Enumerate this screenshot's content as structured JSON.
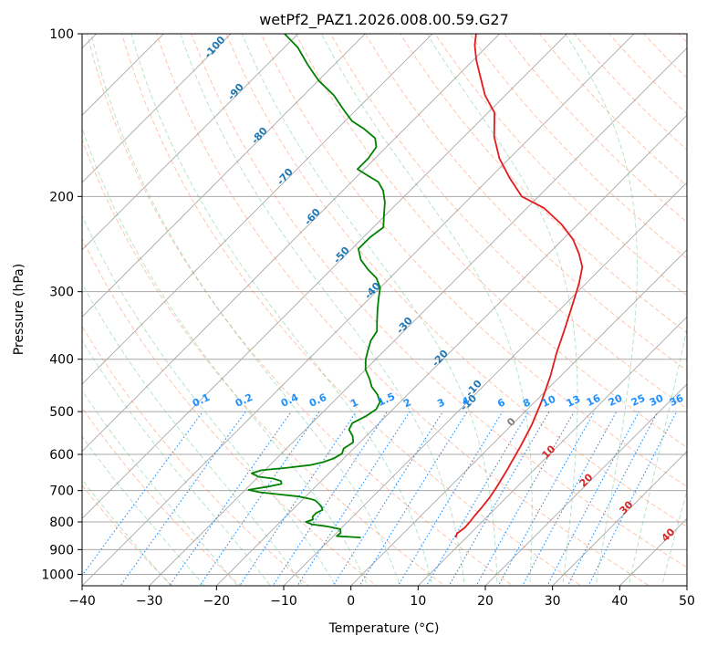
{
  "chart_data": {
    "type": "line",
    "title": "wetPf2_PAZ1.2026.008.00.59.G27",
    "xlabel": "Temperature (°C)",
    "ylabel": "Pressure (hPa)",
    "xlim": [
      -40,
      50
    ],
    "ylim": [
      1050,
      100
    ],
    "y_scale": "log",
    "grid": true,
    "skew_T": true,
    "x_ticks": [
      -40,
      -30,
      -20,
      -10,
      0,
      10,
      20,
      30,
      40,
      50
    ],
    "y_ticks": [
      100,
      200,
      300,
      400,
      500,
      600,
      700,
      800,
      900,
      1000
    ],
    "series": [
      {
        "name": "",
        "color": "#e41a1c",
        "points": [
          [
            8.4,
            855
          ],
          [
            8.0,
            840
          ],
          [
            8.3,
            820
          ],
          [
            8.2,
            800
          ],
          [
            8.0,
            780
          ],
          [
            7.8,
            750
          ],
          [
            7.5,
            720
          ],
          [
            7.0,
            690
          ],
          [
            6.5,
            665
          ],
          [
            6.0,
            640
          ],
          [
            5.5,
            620
          ],
          [
            4.5,
            580
          ],
          [
            3.0,
            530
          ],
          [
            1.0,
            480
          ],
          [
            -1.5,
            430
          ],
          [
            -4.0,
            390
          ],
          [
            -6.5,
            350
          ],
          [
            -9.0,
            315
          ],
          [
            -11.0,
            290
          ],
          [
            -13.0,
            270
          ],
          [
            -15.5,
            255
          ],
          [
            -18.5,
            240
          ],
          [
            -22.5,
            225
          ],
          [
            -27.5,
            210
          ],
          [
            -32.5,
            200
          ],
          [
            -37.0,
            185
          ],
          [
            -41.5,
            170
          ],
          [
            -45.5,
            155
          ],
          [
            -49.0,
            140
          ],
          [
            -53.0,
            130
          ],
          [
            -56.5,
            120
          ],
          [
            -59.5,
            112
          ],
          [
            -62.0,
            105
          ],
          [
            -63.5,
            100
          ]
        ]
      },
      {
        "name": "",
        "color": "#008000",
        "points": [
          [
            -5.7,
            855
          ],
          [
            -9.5,
            850
          ],
          [
            -9.4,
            838
          ],
          [
            -10.0,
            825
          ],
          [
            -12.5,
            815
          ],
          [
            -15.0,
            808
          ],
          [
            -16.2,
            800
          ],
          [
            -15.5,
            792
          ],
          [
            -16.0,
            782
          ],
          [
            -16.0,
            770
          ],
          [
            -15.5,
            760
          ],
          [
            -16.0,
            752
          ],
          [
            -17.0,
            740
          ],
          [
            -18.0,
            730
          ],
          [
            -19.0,
            725
          ],
          [
            -21.0,
            718
          ],
          [
            -24.0,
            712
          ],
          [
            -27.5,
            705
          ],
          [
            -29.5,
            698
          ],
          [
            -27.0,
            688
          ],
          [
            -25.5,
            680
          ],
          [
            -26.0,
            672
          ],
          [
            -27.5,
            665
          ],
          [
            -30.0,
            660
          ],
          [
            -31.5,
            650
          ],
          [
            -30.5,
            642
          ],
          [
            -27.0,
            635
          ],
          [
            -24.0,
            628
          ],
          [
            -22.5,
            620
          ],
          [
            -21.5,
            610
          ],
          [
            -21.0,
            598
          ],
          [
            -21.5,
            585
          ],
          [
            -21.0,
            570
          ],
          [
            -22.0,
            555
          ],
          [
            -23.5,
            540
          ],
          [
            -24.0,
            525
          ],
          [
            -23.0,
            510
          ],
          [
            -22.5,
            495
          ],
          [
            -23.0,
            480
          ],
          [
            -24.5,
            465
          ],
          [
            -26.5,
            450
          ],
          [
            -28.0,
            435
          ],
          [
            -30.0,
            418
          ],
          [
            -31.5,
            400
          ],
          [
            -32.5,
            385
          ],
          [
            -33.5,
            370
          ],
          [
            -34.0,
            355
          ],
          [
            -35.5,
            340
          ],
          [
            -37.0,
            325
          ],
          [
            -38.5,
            310
          ],
          [
            -40.0,
            295
          ],
          [
            -42.0,
            283
          ],
          [
            -44.5,
            273
          ],
          [
            -47.0,
            262
          ],
          [
            -49.0,
            250
          ],
          [
            -49.0,
            238
          ],
          [
            -48.5,
            228
          ],
          [
            -50.0,
            218
          ],
          [
            -52.0,
            205
          ],
          [
            -54.0,
            195
          ],
          [
            -56.0,
            188
          ],
          [
            -58.5,
            183
          ],
          [
            -61.0,
            178
          ],
          [
            -61.0,
            170
          ],
          [
            -61.5,
            162
          ],
          [
            -63.0,
            156
          ],
          [
            -66.0,
            150
          ],
          [
            -69.0,
            145
          ],
          [
            -72.0,
            138
          ],
          [
            -75.5,
            130
          ],
          [
            -80.0,
            122
          ],
          [
            -84.0,
            114
          ],
          [
            -88.0,
            106
          ],
          [
            -92.0,
            100
          ]
        ]
      }
    ],
    "line_labels": {
      "dry_adiabats": [
        "-10",
        "0",
        "10",
        "20",
        "30",
        "40"
      ],
      "moist_adiabats": [
        "-100",
        "-90",
        "-80",
        "-70",
        "-60",
        "-50",
        "-40",
        "-30",
        "-20",
        "-10"
      ],
      "mixing_ratios": [
        "0.1",
        "0.2",
        "0.4",
        "0.6",
        "1",
        "1.5",
        "2",
        "3",
        "4",
        "6",
        "8",
        "10",
        "13",
        "16",
        "20",
        "25",
        "30",
        "36"
      ]
    },
    "colors": {
      "temperature": "#e41a1c",
      "dewpoint": "#008000",
      "isotherm": "#a9a9a9",
      "dry_adiabat": "#ff7f50",
      "moist_adiabat": "#3cb371",
      "mixing_ratio": "#1e90ff",
      "dry_label": "#d62728",
      "moist_label": "#1f77b4",
      "mixing_label": "#1e90ff"
    }
  }
}
